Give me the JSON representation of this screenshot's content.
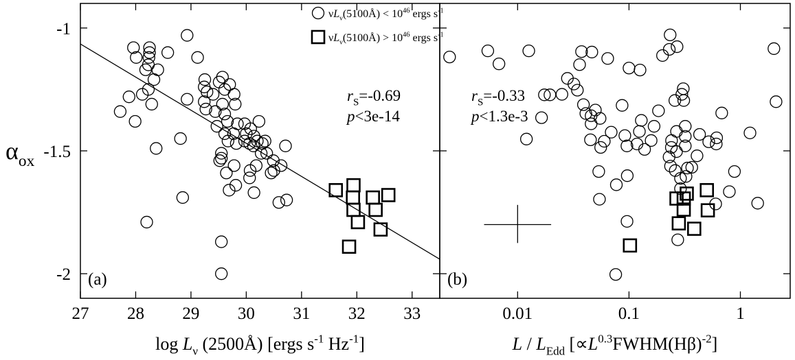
{
  "chart_data": [
    {
      "type": "scatter",
      "panel_label": "(a)",
      "ylabel": [
        "α",
        "ox"
      ],
      "xlabel": [
        "log ",
        "L",
        "ν",
        " (2500Å) [ergs s",
        "-1",
        " Hz",
        "-1",
        "]"
      ],
      "xlim": [
        27,
        33.5
      ],
      "ylim": [
        -2.1,
        -0.9
      ],
      "xticks": [
        27,
        28,
        29,
        30,
        31,
        32,
        33
      ],
      "yticks": [
        -1,
        -1.5,
        -2
      ],
      "series": [
        {
          "marker": "circle",
          "color": "#000000",
          "x": [
            27.72,
            27.96,
            28.01,
            27.88,
            27.99,
            28.25,
            28.25,
            28.24,
            28.23,
            28.18,
            28.33,
            28.4,
            28.23,
            28.12,
            28.29,
            28.58,
            28.93,
            29.12,
            28.93,
            28.37,
            28.81,
            28.85,
            28.2,
            29.25,
            29.24,
            29.29,
            29.24,
            29.27,
            29.4,
            29.51,
            29.57,
            29.61,
            29.57,
            29.44,
            29.7,
            29.78,
            29.8,
            29.61,
            29.66,
            29.47,
            29.84,
            29.77,
            29.61,
            29.82,
            29.67,
            29.55,
            29.52,
            29.55,
            29.64,
            29.69,
            29.78,
            29.81,
            29.97,
            30.0,
            29.97,
            30.06,
            30.08,
            30.14,
            30.13,
            30.23,
            30.2,
            30.29,
            30.27,
            30.18,
            30.07,
            30.06,
            30.14,
            30.37,
            30.34,
            30.49,
            30.5,
            30.63,
            30.71,
            30.59,
            30.73,
            30.45,
            29.55,
            29.55
          ],
          "values": [
            -1.34,
            -1.08,
            -1.12,
            -1.28,
            -1.38,
            -1.08,
            -1.1,
            -1.12,
            -1.15,
            -1.17,
            -1.21,
            -1.17,
            -1.25,
            -1.27,
            -1.31,
            -1.1,
            -1.03,
            -1.12,
            -1.29,
            -1.49,
            -1.45,
            -1.69,
            -1.79,
            -1.21,
            -1.24,
            -1.26,
            -1.3,
            -1.33,
            -1.27,
            -1.22,
            -1.2,
            -1.25,
            -1.31,
            -1.34,
            -1.23,
            -1.27,
            -1.31,
            -1.35,
            -1.38,
            -1.4,
            -1.39,
            -1.43,
            -1.43,
            -1.47,
            -1.46,
            -1.51,
            -1.54,
            -1.53,
            -1.59,
            -1.66,
            -1.56,
            -1.64,
            -1.39,
            -1.43,
            -1.46,
            -1.47,
            -1.41,
            -1.44,
            -1.48,
            -1.38,
            -1.46,
            -1.47,
            -1.51,
            -1.56,
            -1.58,
            -1.61,
            -1.67,
            -1.51,
            -1.46,
            -1.54,
            -1.58,
            -1.56,
            -1.48,
            -1.71,
            -1.7,
            -1.59,
            -1.87,
            -2.0
          ]
        },
        {
          "marker": "square",
          "color": "#000000",
          "x": [
            31.62,
            31.94,
            31.93,
            31.94,
            32.02,
            31.86,
            32.29,
            32.34,
            32.57,
            32.43
          ],
          "values": [
            -1.66,
            -1.64,
            -1.69,
            -1.74,
            -1.79,
            -1.89,
            -1.69,
            -1.74,
            -1.68,
            -1.82
          ]
        }
      ],
      "legend": [
        [
          "ν",
          "L",
          "ν",
          "(5100Å) < 10",
          "46",
          " ergs s",
          "-1"
        ],
        [
          "ν",
          "L",
          "ν",
          "(5100Å) > 10",
          "46",
          " ergs s",
          "-1"
        ]
      ],
      "fit": {
        "x": [
          27,
          33.5
        ],
        "values": [
          -1.065,
          -1.941
        ]
      },
      "annotations": [
        [
          "r",
          "S",
          "=-0.69"
        ],
        [
          "p",
          "<3e-14"
        ]
      ]
    },
    {
      "type": "scatter",
      "panel_label": "(b)",
      "xscale": "log",
      "xlabel": [
        "L",
        " / ",
        "L",
        "Edd",
        " [∝",
        "L",
        "0.3",
        "FWHM(Hβ)",
        "-2",
        "]"
      ],
      "xlim": [
        0.002,
        2.8
      ],
      "ylim": [
        -2.1,
        -0.9
      ],
      "xticks": [
        0.01,
        0.1,
        1
      ],
      "yticks": [
        -1,
        -1.5,
        -2
      ],
      "series": [
        {
          "marker": "circle",
          "color": "#000000",
          "x": [
            0.00245,
            0.0054,
            0.0068,
            0.0126,
            0.0164,
            0.012,
            0.0174,
            0.0195,
            0.025,
            0.028,
            0.032,
            0.0344,
            0.039,
            0.041,
            0.036,
            0.0375,
            0.0644,
            0.0464,
            0.0457,
            0.0457,
            0.0499,
            0.055,
            0.06,
            0.0535,
            0.0543,
            0.0451,
            0.0557,
            0.0692,
            0.0867,
            0.0918,
            0.0958,
            0.0965,
            0.1,
            0.1256,
            0.129,
            0.124,
            0.118,
            0.138,
            0.158,
            0.168,
            0.096,
            0.077,
            0.076,
            0.184,
            0.2,
            0.234,
            0.23,
            0.27,
            0.241,
            0.24,
            0.229,
            0.236,
            0.267,
            0.26,
            0.29,
            0.29,
            0.267,
            0.258,
            0.298,
            0.307,
            0.31,
            0.32,
            0.32,
            0.32,
            0.325,
            0.366,
            0.335,
            0.408,
            0.43,
            0.274,
            0.52,
            0.607,
            0.612,
            0.68,
            0.6,
            0.796,
            0.885,
            1.22,
            1.43,
            2.09,
            2.0
          ],
          "values": [
            -1.118,
            -1.093,
            -1.146,
            -1.093,
            -1.365,
            -1.452,
            -1.272,
            -1.272,
            -1.27,
            -1.205,
            -1.228,
            -1.253,
            -1.312,
            -1.348,
            -1.149,
            -1.096,
            -1.124,
            -1.098,
            -1.357,
            -1.39,
            -1.334,
            -1.368,
            -1.461,
            -1.584,
            -1.697,
            -1.455,
            -1.486,
            -1.424,
            -1.315,
            -1.438,
            -1.48,
            -1.601,
            -1.163,
            -1.171,
            -1.376,
            -1.421,
            -1.472,
            -1.494,
            -1.458,
            -1.4,
            -1.787,
            -1.638,
            -2.003,
            -1.337,
            -1.112,
            -1.028,
            -1.087,
            -1.076,
            -1.458,
            -1.486,
            -1.525,
            -1.562,
            -1.503,
            -1.58,
            -1.612,
            -1.654,
            -1.421,
            -1.295,
            -1.27,
            -1.247,
            -1.295,
            -1.4,
            -1.441,
            -1.48,
            -1.604,
            -1.567,
            -1.57,
            -1.52,
            -1.433,
            -1.862,
            -1.463,
            -1.472,
            -1.447,
            -1.346,
            -1.716,
            -1.666,
            -1.584,
            -1.427,
            -1.713,
            -1.3,
            -1.084
          ]
        },
        {
          "marker": "square",
          "color": "#000000",
          "x": [
            0.267,
            0.31,
            0.33,
            0.31,
            0.5,
            0.51,
            0.28,
            0.385,
            0.102
          ],
          "values": [
            -1.694,
            -1.694,
            -1.674,
            -1.739,
            -1.66,
            -1.742,
            -1.795,
            -1.817,
            -1.885
          ]
        }
      ],
      "error_cross": {
        "x": 0.01,
        "y": -1.8,
        "xrange": [
          0.005,
          0.02
        ],
        "yrange": [
          -1.72,
          -1.875
        ]
      },
      "annotations": [
        [
          "r",
          "S",
          "=-0.33"
        ],
        [
          "p",
          "<1.3e-3"
        ]
      ]
    }
  ]
}
